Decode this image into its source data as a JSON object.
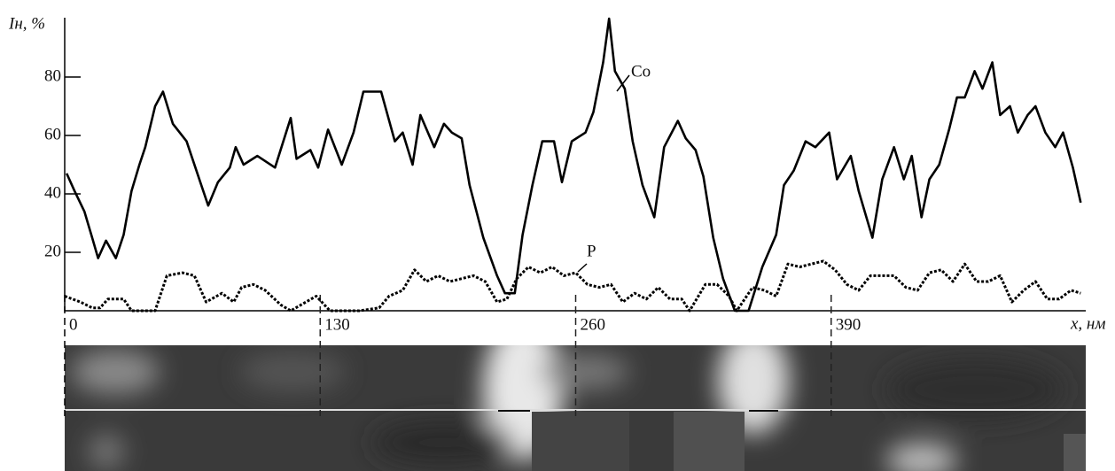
{
  "chart_data": {
    "type": "line",
    "y_label": "Iн, %",
    "x_label": "x, нм",
    "xlim": [
      0,
      520
    ],
    "xticks": [
      0,
      130,
      260,
      390
    ],
    "ylim": [
      0,
      100
    ],
    "yticks": [
      20,
      40,
      60,
      80
    ],
    "series": [
      {
        "name": "Co",
        "color": "#000000",
        "line_style": "solid",
        "x": [
          1,
          5,
          10,
          14,
          17,
          21,
          26,
          30,
          34,
          38,
          41,
          46,
          50,
          55,
          62,
          69,
          73,
          78,
          84,
          87,
          91,
          98,
          107,
          115,
          118,
          125,
          129,
          134,
          141,
          147,
          152,
          161,
          168,
          172,
          177,
          181,
          188,
          193,
          197,
          202,
          206,
          213,
          220,
          224,
          229,
          233,
          238,
          243,
          249,
          253,
          258,
          265,
          269,
          274,
          277,
          280,
          285,
          289,
          294,
          300,
          305,
          312,
          316,
          321,
          325,
          330,
          335,
          341,
          348,
          355,
          362,
          366,
          371,
          377,
          382,
          389,
          393,
          400,
          404,
          411,
          416,
          422,
          427,
          431,
          436,
          440,
          445,
          450,
          454,
          458,
          463,
          467,
          472,
          476,
          481,
          485,
          490,
          494,
          499,
          504,
          508,
          513,
          517
        ],
        "values": [
          47,
          41,
          34,
          25,
          18,
          24,
          18,
          26,
          41,
          50,
          56,
          70,
          75,
          64,
          58,
          44,
          36,
          44,
          49,
          56,
          50,
          53,
          49,
          66,
          52,
          55,
          49,
          62,
          50,
          61,
          75,
          75,
          58,
          61,
          50,
          67,
          56,
          64,
          61,
          59,
          43,
          25,
          12,
          6,
          6,
          26,
          43,
          58,
          58,
          44,
          58,
          61,
          68,
          85,
          100,
          82,
          76,
          58,
          43,
          32,
          56,
          65,
          59,
          55,
          46,
          25,
          11,
          0,
          0,
          15,
          26,
          43,
          48,
          58,
          56,
          61,
          45,
          53,
          41,
          25,
          45,
          56,
          45,
          53,
          32,
          45,
          50,
          62,
          73,
          73,
          82,
          76,
          85,
          67,
          70,
          61,
          67,
          70,
          61,
          56,
          61,
          49,
          37
        ]
      },
      {
        "name": "P",
        "color": "#000000",
        "line_style": "dotted",
        "x": [
          0,
          8,
          14,
          18,
          22,
          30,
          34,
          46,
          52,
          60,
          66,
          72,
          80,
          86,
          90,
          96,
          102,
          110,
          115,
          128,
          135,
          150,
          160,
          165,
          172,
          178,
          184,
          190,
          196,
          202,
          208,
          214,
          220,
          225,
          230,
          236,
          242,
          248,
          254,
          260,
          266,
          272,
          278,
          284,
          290,
          296,
          302,
          308,
          314,
          318,
          326,
          332,
          338,
          342,
          350,
          356,
          362,
          368,
          374,
          380,
          386,
          392,
          398,
          404,
          410,
          416,
          422,
          428,
          434,
          440,
          446,
          452,
          458,
          464,
          470,
          476,
          482,
          488,
          494,
          500,
          506,
          512,
          517
        ],
        "values": [
          5,
          3,
          1,
          1,
          4,
          4,
          0,
          0,
          12,
          13,
          12,
          3,
          6,
          3,
          8,
          9,
          7,
          2,
          0,
          5,
          0,
          0,
          1,
          5,
          7,
          14,
          10,
          12,
          10,
          11,
          12,
          10,
          3,
          4,
          11,
          15,
          13,
          15,
          12,
          13,
          9,
          8,
          9,
          3,
          6,
          4,
          8,
          4,
          4,
          0,
          9,
          9,
          5,
          0,
          8,
          7,
          5,
          16,
          15,
          16,
          17,
          14,
          9,
          7,
          12,
          12,
          12,
          8,
          7,
          13,
          14,
          10,
          16,
          10,
          10,
          12,
          3,
          7,
          10,
          4,
          4,
          7,
          6
        ]
      }
    ]
  }
}
